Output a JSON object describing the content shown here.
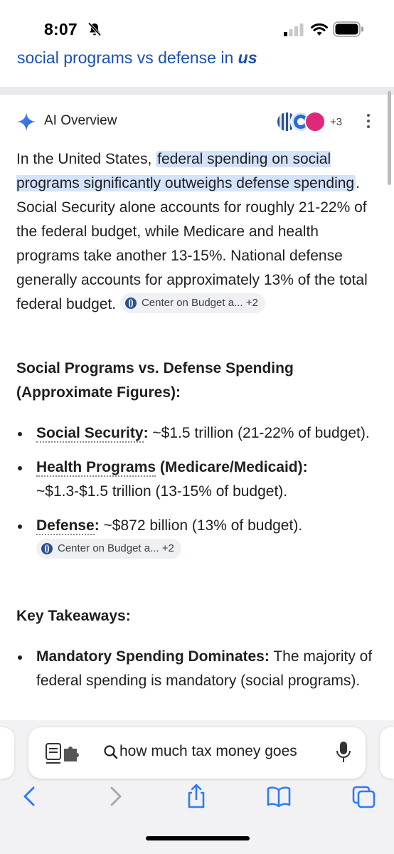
{
  "status_bar": {
    "time": "8:07"
  },
  "search_strip": {
    "text_plain": "social programs vs defense in ",
    "text_bold": "us"
  },
  "ai_overview": {
    "title": "AI Overview",
    "sources_extra": "+3",
    "colors": {
      "sparkle": "#3a72e8",
      "highlight": "#d3e3fd",
      "link": "#1a4fb3"
    }
  },
  "intro": {
    "lead": "In the United States, ",
    "highlight": "federal spending on social programs significantly outweighs defense spending",
    "rest": ". Social Security alone accounts for roughly 21-22% of the federal budget, while Medicare and health programs take another 13-15%. National defense generally accounts for approximately 13% of the total federal budget. ",
    "chip": {
      "label": "Center on Budget a...",
      "extra": "+2"
    }
  },
  "section1": {
    "title": "Social Programs vs. Defense Spending (Approximate Figures):",
    "items": [
      {
        "term": "Social Security",
        "colon": ":",
        "text": " ~$1.5 trillion (21-22% of budget)."
      },
      {
        "term": "Health Programs",
        "suffix": " (Medicare/Medicaid):",
        "text": " ~$1.3-$1.5 trillion (13-15% of budget)."
      },
      {
        "term": "Defense",
        "colon": ":",
        "text": " ~$872 billion (13% of budget). ",
        "chip": {
          "label": "Center on Budget a...",
          "extra": "+2"
        }
      }
    ]
  },
  "section2": {
    "title": "Key Takeaways:",
    "items": [
      {
        "term": "Mandatory Spending Dominates:",
        "text": " The majority of federal spending is mandatory (social programs)."
      }
    ]
  },
  "address_bar": {
    "query": "how much tax money goes"
  }
}
